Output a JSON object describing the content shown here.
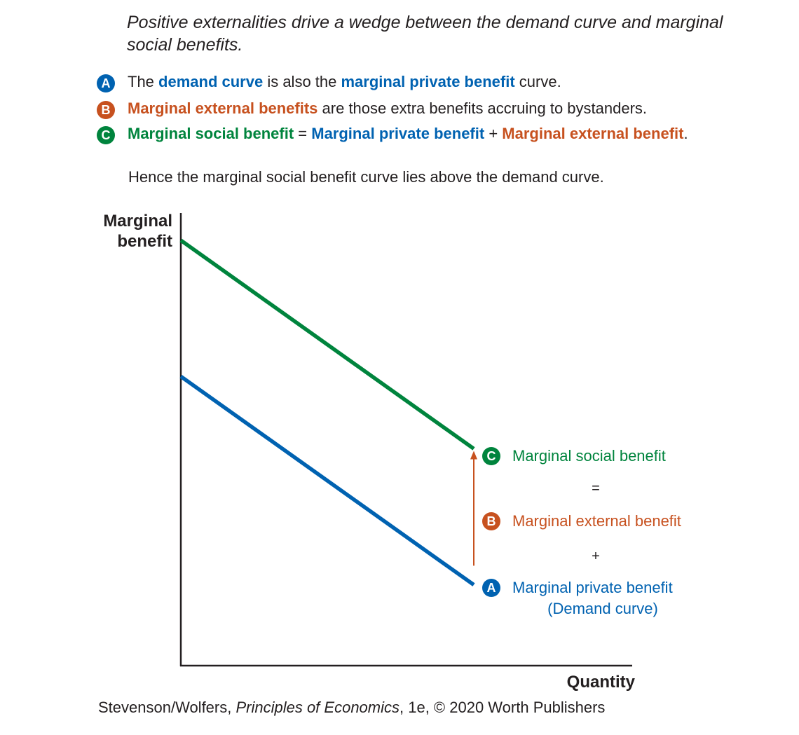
{
  "header": {
    "title": "Positive externalities drive a wedge between the demand curve and marginal social benefits."
  },
  "notes": [
    {
      "badge": "A",
      "color": "#0062b1",
      "parts": [
        {
          "text": "The ",
          "style": "plain"
        },
        {
          "text": "demand curve",
          "style": "blue"
        },
        {
          "text": " is also the ",
          "style": "plain"
        },
        {
          "text": "marginal private benefit",
          "style": "blue"
        },
        {
          "text": " curve.",
          "style": "plain"
        }
      ]
    },
    {
      "badge": "B",
      "color": "#c7511f",
      "parts": [
        {
          "text": "Marginal external benefits",
          "style": "orange"
        },
        {
          "text": " are those extra benefits accruing to bystanders.",
          "style": "plain"
        }
      ]
    },
    {
      "badge": "C",
      "color": "#00843d",
      "parts": [
        {
          "text": "Marginal social benefit",
          "style": "green"
        },
        {
          "text": " = ",
          "style": "plain"
        },
        {
          "text": "Marginal private benefit",
          "style": "blue"
        },
        {
          "text": " + ",
          "style": "plain"
        },
        {
          "text": "Marginal external benefit",
          "style": "orange"
        },
        {
          "text": ".",
          "style": "plain"
        }
      ]
    }
  ],
  "hence": "Hence the marginal social benefit curve lies above the demand curve.",
  "chart_data": {
    "type": "line",
    "xlabel": "Quantity",
    "ylabel": "Marginal benefit",
    "xlim": [
      0,
      10
    ],
    "ylim": [
      0,
      10
    ],
    "grid": false,
    "series": [
      {
        "name": "Marginal social benefit",
        "color": "#00843d",
        "x": [
          0,
          10
        ],
        "y": [
          10,
          5.1
        ]
      },
      {
        "name": "Marginal private benefit",
        "color": "#0062b1",
        "x": [
          0,
          10
        ],
        "y": [
          6.8,
          1.9
        ]
      }
    ],
    "arrow": {
      "x": 10,
      "from": 2.35,
      "to": 5.05,
      "color": "#c7511f"
    }
  },
  "annotations": {
    "social": {
      "badge": "C",
      "label": "Marginal social benefit"
    },
    "equals": "=",
    "external": {
      "badge": "B",
      "label": "Marginal external benefit"
    },
    "plus": "+",
    "private": {
      "badge": "A",
      "label": "Marginal private benefit",
      "sub": "(Demand curve)"
    }
  },
  "credit": {
    "prefix": "Stevenson/Wolfers, ",
    "book": "Principles of Economics",
    "suffix": ", 1e, © 2020 Worth Publishers"
  }
}
